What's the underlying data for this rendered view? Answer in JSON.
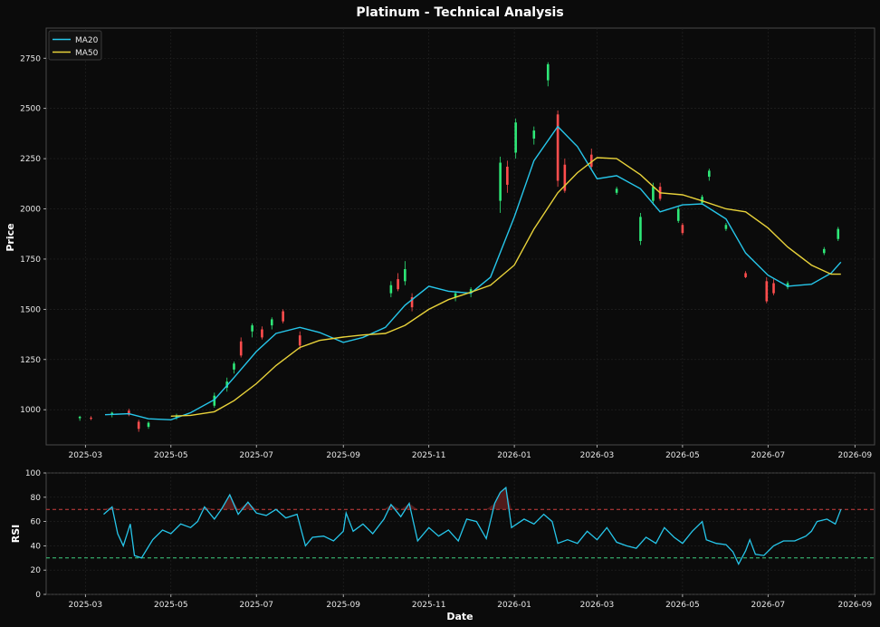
{
  "chart_data": [
    {
      "type": "candlestick",
      "title": "Platinum - Technical Analysis",
      "ylabel": "Price",
      "xlim": [
        "2025-02-01",
        "2026-09-15"
      ],
      "ylim": [
        825,
        2900
      ],
      "x_ticks": [
        "2025-03",
        "2025-05",
        "2025-07",
        "2025-09",
        "2025-11",
        "2026-01",
        "2026-03",
        "2026-05",
        "2026-07",
        "2026-09"
      ],
      "y_ticks": [
        1000,
        1250,
        1500,
        1750,
        2000,
        2250,
        2500,
        2750
      ],
      "grid": true,
      "legend": {
        "placement": "top-left"
      },
      "up_color": "#2ee878",
      "down_color": "#ff4d4d",
      "series": [
        {
          "name": "MA20",
          "color": "#26c6ea",
          "points": [
            [
              "2025-03-15",
              975
            ],
            [
              "2025-04-01",
              980
            ],
            [
              "2025-04-15",
              955
            ],
            [
              "2025-05-01",
              950
            ],
            [
              "2025-05-15",
              985
            ],
            [
              "2025-06-01",
              1050
            ],
            [
              "2025-06-15",
              1160
            ],
            [
              "2025-07-01",
              1290
            ],
            [
              "2025-07-15",
              1380
            ],
            [
              "2025-08-01",
              1410
            ],
            [
              "2025-08-15",
              1385
            ],
            [
              "2025-09-01",
              1335
            ],
            [
              "2025-09-15",
              1360
            ],
            [
              "2025-10-01",
              1410
            ],
            [
              "2025-10-15",
              1520
            ],
            [
              "2025-11-01",
              1615
            ],
            [
              "2025-11-15",
              1590
            ],
            [
              "2025-12-01",
              1580
            ],
            [
              "2025-12-15",
              1660
            ],
            [
              "2026-01-01",
              1960
            ],
            [
              "2026-01-15",
              2240
            ],
            [
              "2026-02-01",
              2410
            ],
            [
              "2026-02-15",
              2310
            ],
            [
              "2026-03-01",
              2150
            ],
            [
              "2026-03-15",
              2165
            ],
            [
              "2026-04-01",
              2100
            ],
            [
              "2026-04-15",
              1985
            ],
            [
              "2026-05-01",
              2020
            ],
            [
              "2026-05-15",
              2025
            ],
            [
              "2026-06-01",
              1950
            ],
            [
              "2026-06-15",
              1780
            ],
            [
              "2026-07-01",
              1670
            ],
            [
              "2026-07-15",
              1615
            ],
            [
              "2026-08-01",
              1625
            ],
            [
              "2026-08-15",
              1680
            ],
            [
              "2026-08-22",
              1735
            ]
          ]
        },
        {
          "name": "MA50",
          "color": "#e8d23a",
          "points": [
            [
              "2025-05-01",
              968
            ],
            [
              "2025-05-15",
              972
            ],
            [
              "2025-06-01",
              990
            ],
            [
              "2025-06-15",
              1045
            ],
            [
              "2025-07-01",
              1130
            ],
            [
              "2025-07-15",
              1220
            ],
            [
              "2025-08-01",
              1310
            ],
            [
              "2025-08-15",
              1345
            ],
            [
              "2025-09-01",
              1362
            ],
            [
              "2025-09-15",
              1372
            ],
            [
              "2025-10-01",
              1380
            ],
            [
              "2025-10-15",
              1420
            ],
            [
              "2025-11-01",
              1500
            ],
            [
              "2025-11-15",
              1548
            ],
            [
              "2025-12-01",
              1585
            ],
            [
              "2025-12-15",
              1620
            ],
            [
              "2026-01-01",
              1720
            ],
            [
              "2026-01-15",
              1900
            ],
            [
              "2026-02-01",
              2080
            ],
            [
              "2026-02-15",
              2180
            ],
            [
              "2026-03-01",
              2255
            ],
            [
              "2026-03-15",
              2250
            ],
            [
              "2026-04-01",
              2170
            ],
            [
              "2026-04-15",
              2080
            ],
            [
              "2026-05-01",
              2070
            ],
            [
              "2026-05-15",
              2040
            ],
            [
              "2026-06-01",
              2000
            ],
            [
              "2026-06-15",
              1985
            ],
            [
              "2026-07-01",
              1905
            ],
            [
              "2026-07-15",
              1810
            ],
            [
              "2026-08-01",
              1720
            ],
            [
              "2026-08-15",
              1675
            ],
            [
              "2026-08-22",
              1675
            ]
          ]
        }
      ],
      "candles": [
        [
          "2025-02-25",
          958,
          965,
          950,
          945,
          970
        ],
        [
          "2025-03-05",
          960,
          955,
          952,
          948,
          968
        ],
        [
          "2025-03-20",
          975,
          985,
          970,
          962,
          990
        ],
        [
          "2025-04-01",
          995,
          975,
          998,
          968,
          1005
        ],
        [
          "2025-04-08",
          940,
          905,
          945,
          890,
          950
        ],
        [
          "2025-04-15",
          915,
          935,
          910,
          905,
          942
        ],
        [
          "2025-05-05",
          960,
          972,
          955,
          950,
          980
        ],
        [
          "2025-06-01",
          1020,
          1070,
          1015,
          1010,
          1085
        ],
        [
          "2025-06-10",
          1110,
          1140,
          1100,
          1090,
          1160
        ],
        [
          "2025-06-15",
          1200,
          1230,
          1190,
          1180,
          1240
        ],
        [
          "2025-06-20",
          1340,
          1270,
          1345,
          1260,
          1360
        ],
        [
          "2025-06-28",
          1390,
          1420,
          1370,
          1360,
          1430
        ],
        [
          "2025-07-05",
          1400,
          1360,
          1405,
          1350,
          1415
        ],
        [
          "2025-07-12",
          1420,
          1450,
          1410,
          1400,
          1460
        ],
        [
          "2025-07-20",
          1490,
          1440,
          1495,
          1430,
          1500
        ],
        [
          "2025-08-01",
          1370,
          1320,
          1375,
          1300,
          1390
        ],
        [
          "2025-10-05",
          1580,
          1620,
          1570,
          1560,
          1640
        ],
        [
          "2025-10-10",
          1650,
          1600,
          1655,
          1590,
          1680
        ],
        [
          "2025-10-15",
          1640,
          1700,
          1630,
          1620,
          1740
        ],
        [
          "2025-10-20",
          1560,
          1510,
          1565,
          1490,
          1580
        ],
        [
          "2025-11-20",
          1560,
          1580,
          1555,
          1540,
          1590
        ],
        [
          "2025-12-01",
          1580,
          1600,
          1570,
          1560,
          1610
        ],
        [
          "2025-12-22",
          2040,
          2230,
          2020,
          1980,
          2260
        ],
        [
          "2025-12-27",
          2210,
          2120,
          2220,
          2080,
          2240
        ],
        [
          "2026-01-02",
          2280,
          2430,
          2270,
          2250,
          2450
        ],
        [
          "2026-01-15",
          2350,
          2390,
          2340,
          2320,
          2410
        ],
        [
          "2026-01-25",
          2640,
          2720,
          2630,
          2610,
          2730
        ],
        [
          "2026-02-01",
          2470,
          2140,
          2480,
          2110,
          2490
        ],
        [
          "2026-02-06",
          2220,
          2090,
          2230,
          2080,
          2250
        ],
        [
          "2026-02-25",
          2270,
          2210,
          2280,
          2200,
          2300
        ],
        [
          "2026-03-15",
          2080,
          2100,
          2075,
          2070,
          2110
        ],
        [
          "2026-04-01",
          1840,
          1960,
          1835,
          1820,
          1980
        ],
        [
          "2026-04-10",
          2040,
          2110,
          2030,
          2020,
          2130
        ],
        [
          "2026-04-15",
          2110,
          2050,
          2115,
          2040,
          2130
        ],
        [
          "2026-04-28",
          1940,
          2000,
          1935,
          1930,
          2010
        ],
        [
          "2026-05-01",
          1920,
          1880,
          1925,
          1870,
          1930
        ],
        [
          "2026-05-15",
          2030,
          2060,
          2025,
          2020,
          2070
        ],
        [
          "2026-05-20",
          2160,
          2190,
          2150,
          2140,
          2200
        ],
        [
          "2026-06-01",
          1900,
          1920,
          1895,
          1890,
          1930
        ],
        [
          "2026-06-15",
          1680,
          1660,
          1685,
          1655,
          1690
        ],
        [
          "2026-06-30",
          1640,
          1540,
          1650,
          1530,
          1660
        ],
        [
          "2026-07-05",
          1630,
          1580,
          1635,
          1570,
          1650
        ],
        [
          "2026-07-15",
          1610,
          1630,
          1605,
          1600,
          1640
        ],
        [
          "2026-08-10",
          1780,
          1800,
          1775,
          1770,
          1810
        ],
        [
          "2026-08-20",
          1850,
          1900,
          1845,
          1840,
          1910
        ]
      ]
    },
    {
      "type": "line",
      "xlabel": "Date",
      "ylabel": "RSI",
      "ylim": [
        0,
        100
      ],
      "y_ticks": [
        0,
        20,
        40,
        60,
        80,
        100
      ],
      "x_ticks": [
        "2025-03",
        "2025-05",
        "2025-07",
        "2025-09",
        "2025-11",
        "2026-01",
        "2026-03",
        "2026-05",
        "2026-07",
        "2026-09"
      ],
      "grid": true,
      "overbought": 70,
      "oversold": 30,
      "overbought_color": "#d04040",
      "oversold_color": "#3ccf80",
      "series": [
        {
          "color": "#26c6ea",
          "points": [
            [
              "2025-03-14",
              66
            ],
            [
              "2025-03-20",
              72
            ],
            [
              "2025-03-24",
              50
            ],
            [
              "2025-03-28",
              40
            ],
            [
              "2025-04-02",
              58
            ],
            [
              "2025-04-05",
              32
            ],
            [
              "2025-04-10",
              30
            ],
            [
              "2025-04-18",
              45
            ],
            [
              "2025-04-25",
              53
            ],
            [
              "2025-05-01",
              50
            ],
            [
              "2025-05-08",
              58
            ],
            [
              "2025-05-15",
              55
            ],
            [
              "2025-05-20",
              60
            ],
            [
              "2025-05-25",
              72
            ],
            [
              "2025-06-01",
              62
            ],
            [
              "2025-06-06",
              70
            ],
            [
              "2025-06-12",
              82
            ],
            [
              "2025-06-18",
              66
            ],
            [
              "2025-06-25",
              76
            ],
            [
              "2025-07-01",
              67
            ],
            [
              "2025-07-08",
              65
            ],
            [
              "2025-07-15",
              70
            ],
            [
              "2025-07-22",
              63
            ],
            [
              "2025-07-30",
              66
            ],
            [
              "2025-08-05",
              40
            ],
            [
              "2025-08-10",
              47
            ],
            [
              "2025-08-18",
              48
            ],
            [
              "2025-08-25",
              44
            ],
            [
              "2025-09-01",
              52
            ],
            [
              "2025-09-03",
              67
            ],
            [
              "2025-09-08",
              52
            ],
            [
              "2025-09-15",
              58
            ],
            [
              "2025-09-22",
              50
            ],
            [
              "2025-09-30",
              62
            ],
            [
              "2025-10-05",
              74
            ],
            [
              "2025-10-12",
              64
            ],
            [
              "2025-10-18",
              75
            ],
            [
              "2025-10-24",
              44
            ],
            [
              "2025-11-01",
              55
            ],
            [
              "2025-11-08",
              48
            ],
            [
              "2025-11-15",
              53
            ],
            [
              "2025-11-22",
              44
            ],
            [
              "2025-11-28",
              62
            ],
            [
              "2025-12-05",
              60
            ],
            [
              "2025-12-12",
              46
            ],
            [
              "2025-12-18",
              75
            ],
            [
              "2025-12-22",
              84
            ],
            [
              "2025-12-26",
              88
            ],
            [
              "2025-12-30",
              55
            ],
            [
              "2026-01-08",
              62
            ],
            [
              "2026-01-15",
              58
            ],
            [
              "2026-01-22",
              66
            ],
            [
              "2026-01-28",
              60
            ],
            [
              "2026-02-01",
              42
            ],
            [
              "2026-02-08",
              45
            ],
            [
              "2026-02-15",
              42
            ],
            [
              "2026-02-22",
              52
            ],
            [
              "2026-03-01",
              45
            ],
            [
              "2026-03-08",
              55
            ],
            [
              "2026-03-15",
              43
            ],
            [
              "2026-03-22",
              40
            ],
            [
              "2026-03-29",
              38
            ],
            [
              "2026-04-05",
              47
            ],
            [
              "2026-04-12",
              42
            ],
            [
              "2026-04-18",
              55
            ],
            [
              "2026-04-25",
              47
            ],
            [
              "2026-05-01",
              42
            ],
            [
              "2026-05-08",
              52
            ],
            [
              "2026-05-15",
              60
            ],
            [
              "2026-05-18",
              45
            ],
            [
              "2026-05-25",
              42
            ],
            [
              "2026-06-01",
              41
            ],
            [
              "2026-06-06",
              35
            ],
            [
              "2026-06-10",
              25
            ],
            [
              "2026-06-15",
              36
            ],
            [
              "2026-06-18",
              45
            ],
            [
              "2026-06-22",
              33
            ],
            [
              "2026-06-28",
              32
            ],
            [
              "2026-07-05",
              40
            ],
            [
              "2026-07-12",
              44
            ],
            [
              "2026-07-20",
              44
            ],
            [
              "2026-07-28",
              48
            ],
            [
              "2026-08-01",
              52
            ],
            [
              "2026-08-05",
              60
            ],
            [
              "2026-08-12",
              62
            ],
            [
              "2026-08-18",
              58
            ],
            [
              "2026-08-22",
              70
            ]
          ]
        }
      ]
    }
  ]
}
